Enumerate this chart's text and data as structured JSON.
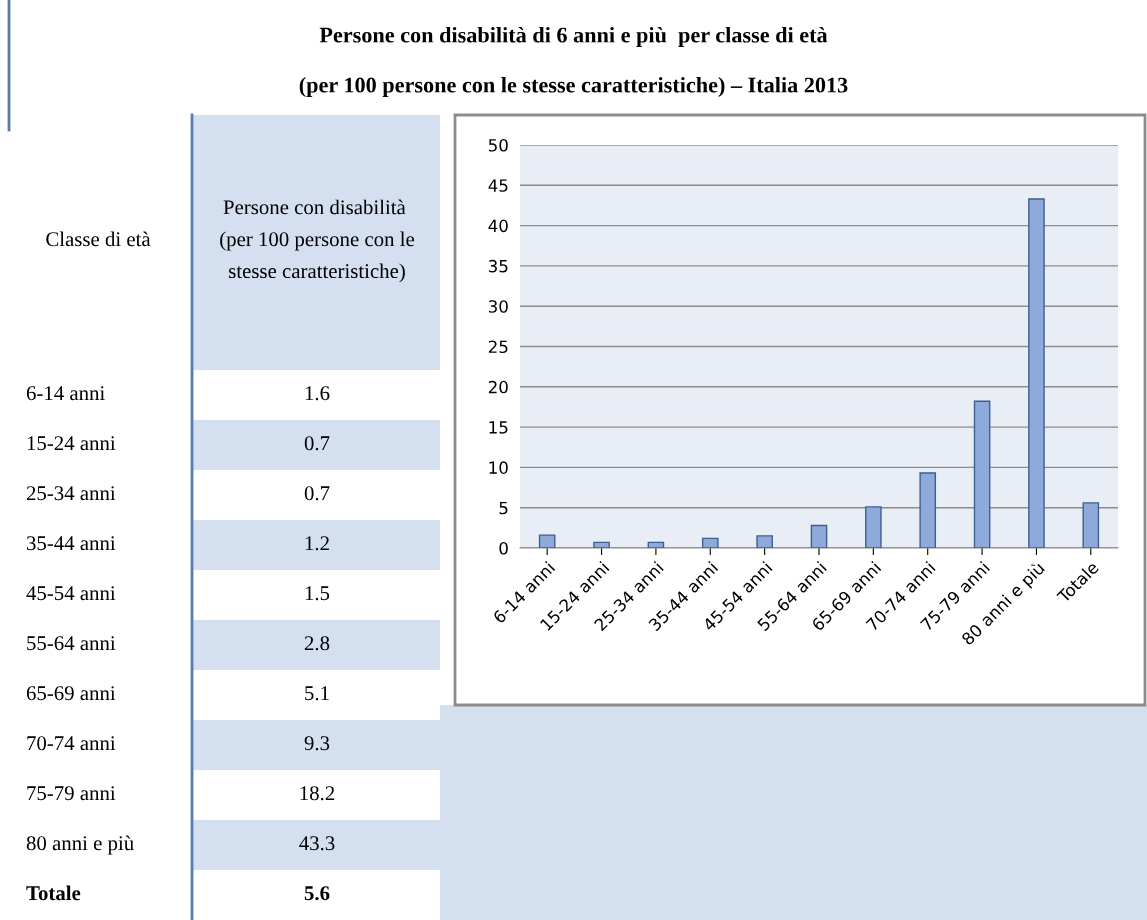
{
  "chart_data": [
    {
      "type": "other",
      "categories": [
        "6-14 anni",
        "15-24 anni",
        "25-34 anni",
        "35-44 anni",
        "45-54 anni",
        "55-64 anni",
        "65-69 anni",
        "70-74 anni",
        "75-79 anni",
        "80 anni e più",
        "Totale"
      ],
      "value_labels": [
        "1.6",
        "0.7",
        "0.7",
        "1.2",
        "1.5",
        "2.8",
        "5.1",
        "9.3",
        "18.2",
        "43.3",
        "5.6"
      ],
      "annotations": [
        "Classe di età",
        "Persone con disabilità  (per 100 persone con le stesse caratteristiche)"
      ]
    },
    {
      "type": "bar",
      "title": "Persone con disabilità di 6 anni e più  per classe di età\n(per 100 persone con le stesse caratteristiche) – Italia 2013",
      "categories": [
        "6-14 anni",
        "15-24 anni",
        "25-34 anni",
        "35-44 anni",
        "45-54 anni",
        "55-64 anni",
        "65-69 anni",
        "70-74 anni",
        "75-79 anni",
        "80 anni e più",
        "Totale"
      ],
      "values": [
        1.6,
        0.7,
        0.7,
        1.2,
        1.5,
        2.8,
        5.1,
        9.3,
        18.2,
        43.3,
        5.6
      ],
      "color": "#8eaadb",
      "ylim": [
        0,
        50
      ],
      "yticks": [
        0,
        5,
        10,
        15,
        20,
        25,
        30,
        35,
        40,
        45,
        50
      ],
      "grid": "y"
    }
  ]
}
